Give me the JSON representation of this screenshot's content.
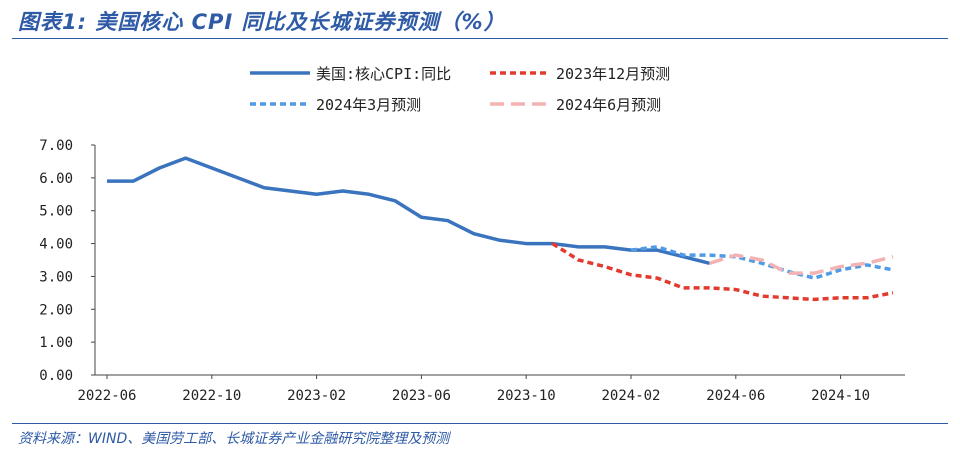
{
  "header": {
    "title": "图表1:  美国核心 CPI 同比及长城证券预测（%）"
  },
  "footer": {
    "source": "资料来源：WIND、美国劳工部、长城证券产业金融研究院整理及预测"
  },
  "chart_data": {
    "type": "line",
    "y_ticks": [
      "7.00",
      "6.00",
      "5.00",
      "4.00",
      "3.00",
      "2.00",
      "1.00",
      "0.00"
    ],
    "x_ticks": [
      "2022-06",
      "2022-10",
      "2023-02",
      "2023-06",
      "2023-10",
      "2024-02",
      "2024-06",
      "2024-10"
    ],
    "ylim": [
      0,
      7
    ],
    "legend_position": "top",
    "months": [
      "2022-06",
      "2022-07",
      "2022-08",
      "2022-09",
      "2022-10",
      "2022-11",
      "2022-12",
      "2023-01",
      "2023-02",
      "2023-03",
      "2023-04",
      "2023-05",
      "2023-06",
      "2023-07",
      "2023-08",
      "2023-09",
      "2023-10",
      "2023-11",
      "2023-12",
      "2024-01",
      "2024-02",
      "2024-03",
      "2024-04",
      "2024-05",
      "2024-06",
      "2024-07",
      "2024-08",
      "2024-09",
      "2024-10",
      "2024-11",
      "2024-12"
    ],
    "series": [
      {
        "name": "美国:核心CPI:同比",
        "color": "#3a73be",
        "dash": "solid",
        "data": [
          [
            "2022-06",
            5.9
          ],
          [
            "2022-07",
            5.9
          ],
          [
            "2022-08",
            6.3
          ],
          [
            "2022-09",
            6.6
          ],
          [
            "2022-10",
            6.3
          ],
          [
            "2022-11",
            6.0
          ],
          [
            "2022-12",
            5.7
          ],
          [
            "2023-01",
            5.6
          ],
          [
            "2023-02",
            5.5
          ],
          [
            "2023-03",
            5.6
          ],
          [
            "2023-04",
            5.5
          ],
          [
            "2023-05",
            5.3
          ],
          [
            "2023-06",
            4.8
          ],
          [
            "2023-07",
            4.7
          ],
          [
            "2023-08",
            4.3
          ],
          [
            "2023-09",
            4.1
          ],
          [
            "2023-10",
            4.0
          ],
          [
            "2023-11",
            4.0
          ],
          [
            "2023-12",
            3.9
          ],
          [
            "2024-01",
            3.9
          ],
          [
            "2024-02",
            3.8
          ],
          [
            "2024-03",
            3.8
          ],
          [
            "2024-04",
            3.6
          ],
          [
            "2024-05",
            3.4
          ]
        ]
      },
      {
        "name": "2023年12月预测",
        "color": "#e23b2e",
        "dash": "dot",
        "data": [
          [
            "2023-11",
            4.0
          ],
          [
            "2023-12",
            3.5
          ],
          [
            "2024-01",
            3.3
          ],
          [
            "2024-02",
            3.05
          ],
          [
            "2024-03",
            2.95
          ],
          [
            "2024-04",
            2.65
          ],
          [
            "2024-05",
            2.65
          ],
          [
            "2024-06",
            2.6
          ],
          [
            "2024-07",
            2.4
          ],
          [
            "2024-08",
            2.35
          ],
          [
            "2024-09",
            2.3
          ],
          [
            "2024-10",
            2.35
          ],
          [
            "2024-11",
            2.35
          ],
          [
            "2024-12",
            2.5
          ]
        ]
      },
      {
        "name": "2024年3月预测",
        "color": "#4f9be6",
        "dash": "dot",
        "data": [
          [
            "2024-02",
            3.8
          ],
          [
            "2024-03",
            3.9
          ],
          [
            "2024-04",
            3.65
          ],
          [
            "2024-05",
            3.65
          ],
          [
            "2024-06",
            3.6
          ],
          [
            "2024-07",
            3.4
          ],
          [
            "2024-08",
            3.15
          ],
          [
            "2024-09",
            2.95
          ],
          [
            "2024-10",
            3.2
          ],
          [
            "2024-11",
            3.35
          ],
          [
            "2024-12",
            3.2
          ]
        ]
      },
      {
        "name": "2024年6月预测",
        "color": "#f3b3b3",
        "dash": "dash",
        "data": [
          [
            "2024-05",
            3.4
          ],
          [
            "2024-06",
            3.65
          ],
          [
            "2024-07",
            3.5
          ],
          [
            "2024-08",
            3.1
          ],
          [
            "2024-09",
            3.1
          ],
          [
            "2024-10",
            3.3
          ],
          [
            "2024-11",
            3.4
          ],
          [
            "2024-12",
            3.6
          ]
        ]
      }
    ]
  }
}
